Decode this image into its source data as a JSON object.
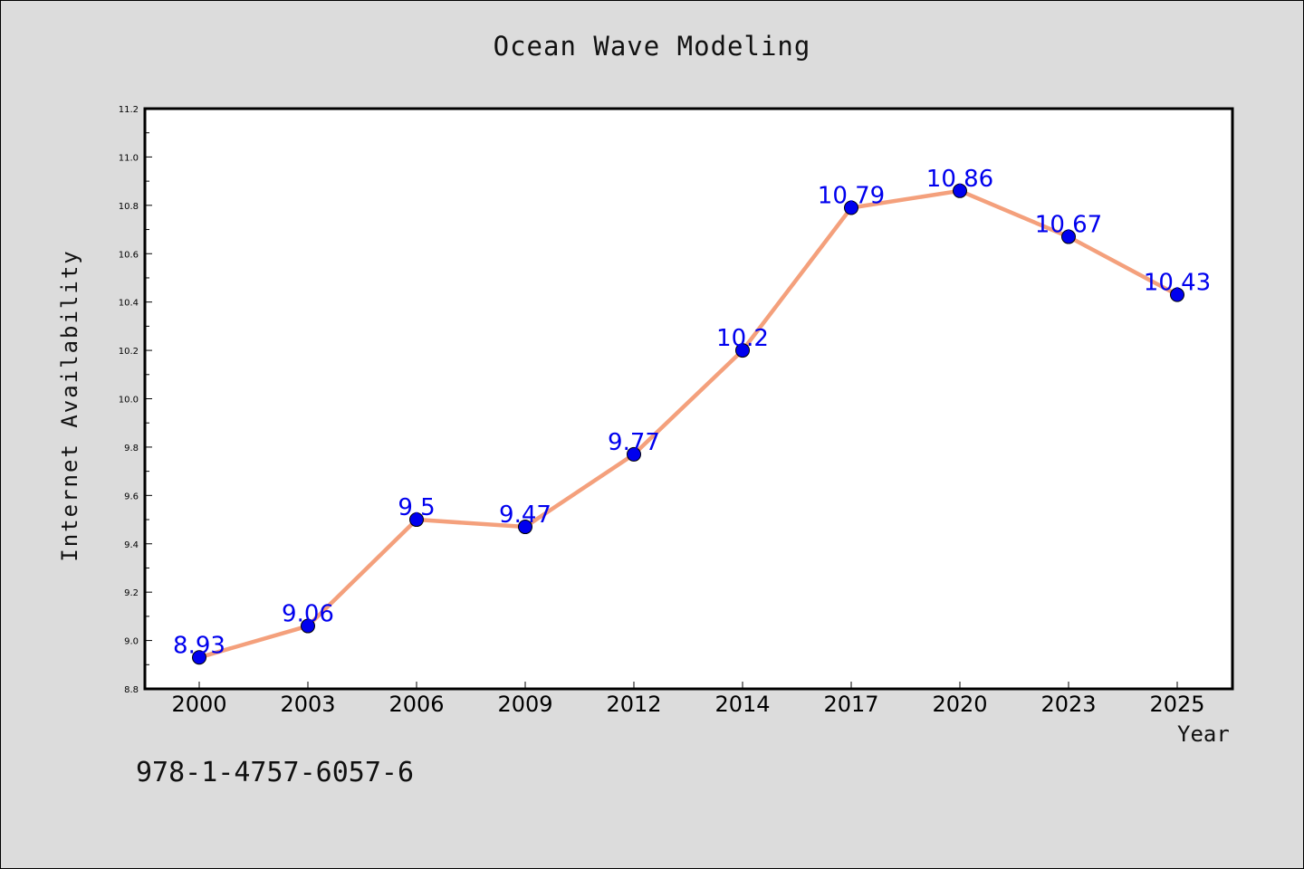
{
  "chart_data": {
    "type": "line",
    "title": "Ocean Wave Modeling",
    "xlabel": "Year",
    "ylabel": "Internet Availability",
    "categories": [
      "2000",
      "2003",
      "2006",
      "2009",
      "2012",
      "2014",
      "2017",
      "2020",
      "2023",
      "2025"
    ],
    "series": [
      {
        "values": [
          8.93,
          9.06,
          9.5,
          9.47,
          9.77,
          10.2,
          10.79,
          10.86,
          10.67,
          10.43
        ]
      }
    ],
    "data_labels": [
      "8.93",
      "9.06",
      "9.5",
      "9.47",
      "9.77",
      "10.2",
      "10.79",
      "10.86",
      "10.67",
      "10.43"
    ],
    "ylim": [
      8.8,
      11.2
    ],
    "yticks": [
      "8.8",
      "9.0",
      "9.2",
      "9.4",
      "9.6",
      "9.8",
      "10.0",
      "10.2",
      "10.4",
      "10.6",
      "10.8",
      "11.0",
      "11.2"
    ],
    "grid": false,
    "legend": "none",
    "colors": {
      "line": "#f4a07c",
      "marker": "#0000ee",
      "label": "#0000ee",
      "plot_bg": "#ffffff",
      "page_bg": "#dcdcdc"
    }
  },
  "footer": {
    "isbn": "978-1-4757-6057-6"
  }
}
